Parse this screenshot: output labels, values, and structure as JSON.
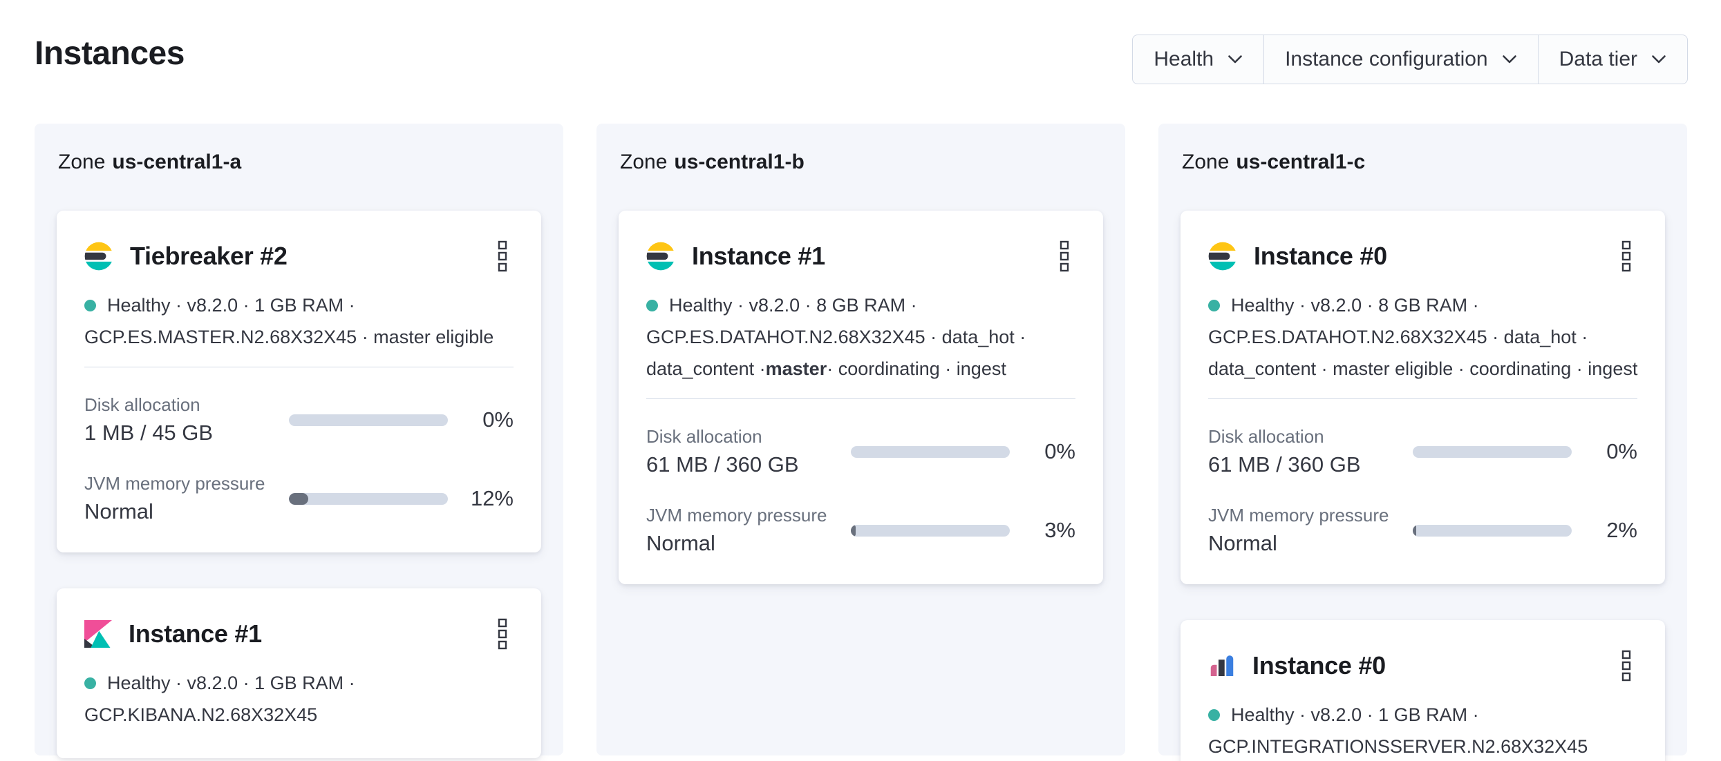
{
  "header": {
    "title": "Instances"
  },
  "filters": {
    "health_label": "Health",
    "instance_configuration_label": "Instance configuration",
    "data_tier_label": "Data tier"
  },
  "colors": {
    "healthy_dot": "#38b1a3",
    "elastic_yellow": "#fec514",
    "elastic_dark": "#343741",
    "elastic_teal": "#00bfb3",
    "kibana_pink": "#f04e98",
    "integrations_pink": "#d4638f",
    "integrations_blue": "#3b7fe0",
    "bar_track": "#d3dae6",
    "bar_fill": "#69707d",
    "zone_panel_bg": "#f4f6fb",
    "divider": "#d3dae6"
  },
  "zones": [
    {
      "zone_label": "Zone",
      "zone_name": "us-central1-a",
      "cards": [
        {
          "icon": "elasticsearch-logo",
          "title": "Tiebreaker #2",
          "status_lines": {
            "line1": "Healthy · v8.2.0 · 1 GB RAM ·",
            "line2": "GCP.ES.MASTER.N2.68X32X45 · master eligible"
          },
          "metrics": [
            {
              "label": "Disk allocation",
              "value": "1 MB / 45 GB",
              "percent": "0%",
              "bar_width": "0%"
            },
            {
              "label": "JVM memory pressure",
              "value": "Normal",
              "percent": "12%",
              "bar_width": "12%"
            }
          ]
        },
        {
          "icon": "kibana-logo",
          "title": "Instance #1",
          "status_lines": {
            "line1": "Healthy · v8.2.0 · 1 GB RAM ·",
            "line2": "GCP.KIBANA.N2.68X32X45"
          }
        }
      ]
    },
    {
      "zone_label": "Zone",
      "zone_name": "us-central1-b",
      "cards": [
        {
          "icon": "elasticsearch-logo",
          "title": "Instance #1",
          "status_lines": {
            "line1": "Healthy · v8.2.0 · 8 GB RAM ·",
            "line2": "GCP.ES.DATAHOT.N2.68X32X45 · data_hot ·",
            "line3_pre": "data_content · ",
            "line3_bold": "master",
            "line3_post": " · coordinating · ingest"
          },
          "metrics": [
            {
              "label": "Disk allocation",
              "value": "61 MB / 360 GB",
              "percent": "0%",
              "bar_width": "0%"
            },
            {
              "label": "JVM memory pressure",
              "value": "Normal",
              "percent": "3%",
              "bar_width": "3%"
            }
          ]
        }
      ]
    },
    {
      "zone_label": "Zone",
      "zone_name": "us-central1-c",
      "cards": [
        {
          "icon": "elasticsearch-logo",
          "title": "Instance #0",
          "status_lines": {
            "line1": "Healthy · v8.2.0 · 8 GB RAM ·",
            "line2": "GCP.ES.DATAHOT.N2.68X32X45 · data_hot ·",
            "line3": "data_content · master eligible · coordinating · ingest"
          },
          "metrics": [
            {
              "label": "Disk allocation",
              "value": "61 MB / 360 GB",
              "percent": "0%",
              "bar_width": "0%"
            },
            {
              "label": "JVM memory pressure",
              "value": "Normal",
              "percent": "2%",
              "bar_width": "2%"
            }
          ]
        },
        {
          "icon": "integrations-server-logo",
          "title": "Instance #0",
          "status_lines": {
            "line1": "Healthy · v8.2.0 · 1 GB RAM ·",
            "line2": "GCP.INTEGRATIONSSERVER.N2.68X32X45"
          }
        }
      ]
    }
  ]
}
